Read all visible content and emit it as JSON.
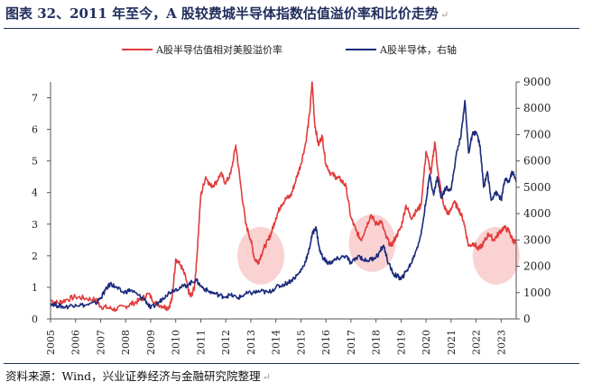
{
  "figure": {
    "title": "图表 32、2011 年至今，A 股较费城半导体指数估值溢价率和比价走势",
    "source": "资料来源：Wind，兴业证券经济与金融研究院整理",
    "paragraph_mark": "↵"
  },
  "chart_data": {
    "type": "line",
    "title": "",
    "xlabel": "",
    "ylabel_left": "",
    "ylabel_right": "",
    "x_ticks": [
      "2005",
      "2006",
      "2007",
      "2008",
      "2009",
      "2010",
      "2011",
      "2012",
      "2013",
      "2014",
      "2015",
      "2016",
      "2017",
      "2018",
      "2019",
      "2020",
      "2021",
      "2022",
      "2023"
    ],
    "x_range": [
      2005.0,
      2023.6
    ],
    "y_left": {
      "ticks": [
        "0",
        "1",
        "2",
        "3",
        "4",
        "5",
        "6",
        "7"
      ],
      "range": [
        0,
        7.5
      ]
    },
    "y_right": {
      "ticks": [
        "0",
        "1000",
        "2000",
        "3000",
        "4000",
        "5000",
        "6000",
        "7000",
        "8000",
        "9000"
      ],
      "range": [
        0,
        9000
      ]
    },
    "grid": false,
    "legend_position": "top",
    "series": [
      {
        "name": "A股半导估值相对美股溢价率",
        "axis": "left",
        "color": "#e23b3b",
        "x": [
          2005.0,
          2005.3,
          2005.6,
          2006.0,
          2006.4,
          2006.8,
          2007.0,
          2007.3,
          2007.6,
          2008.0,
          2008.3,
          2008.6,
          2008.9,
          2009.2,
          2009.5,
          2009.7,
          2009.85,
          2010.0,
          2010.2,
          2010.4,
          2010.5,
          2010.6,
          2010.75,
          2010.85,
          2011.0,
          2011.2,
          2011.4,
          2011.6,
          2011.8,
          2012.0,
          2012.2,
          2012.4,
          2012.6,
          2012.8,
          2013.0,
          2013.15,
          2013.3,
          2013.5,
          2013.7,
          2013.85,
          2014.0,
          2014.2,
          2014.4,
          2014.6,
          2014.8,
          2015.0,
          2015.2,
          2015.35,
          2015.45,
          2015.55,
          2015.7,
          2015.85,
          2016.0,
          2016.2,
          2016.4,
          2016.6,
          2016.8,
          2017.0,
          2017.2,
          2017.4,
          2017.6,
          2017.8,
          2018.0,
          2018.2,
          2018.4,
          2018.6,
          2018.8,
          2019.0,
          2019.2,
          2019.4,
          2019.6,
          2019.8,
          2020.0,
          2020.2,
          2020.35,
          2020.5,
          2020.7,
          2020.9,
          2021.1,
          2021.3,
          2021.5,
          2021.7,
          2021.9,
          2022.1,
          2022.3,
          2022.5,
          2022.7,
          2022.9,
          2023.1,
          2023.3,
          2023.45,
          2023.6
        ],
        "values": [
          0.6,
          0.5,
          0.6,
          0.7,
          0.65,
          0.6,
          0.4,
          0.35,
          0.3,
          0.4,
          0.5,
          0.6,
          0.8,
          0.5,
          0.4,
          0.35,
          0.6,
          1.9,
          1.7,
          1.3,
          0.9,
          0.7,
          1.0,
          2.0,
          3.9,
          4.5,
          4.2,
          4.3,
          4.6,
          4.3,
          4.6,
          5.5,
          4.2,
          3.0,
          2.5,
          1.9,
          1.8,
          2.2,
          2.5,
          2.8,
          3.2,
          3.6,
          3.8,
          3.9,
          4.4,
          4.9,
          5.6,
          6.5,
          7.5,
          6.2,
          5.5,
          5.8,
          4.9,
          4.6,
          4.5,
          4.4,
          4.2,
          3.2,
          2.8,
          2.5,
          2.9,
          3.3,
          3.0,
          3.1,
          2.6,
          2.3,
          2.6,
          2.9,
          3.6,
          3.2,
          3.4,
          3.6,
          5.3,
          4.6,
          5.6,
          4.5,
          3.6,
          3.3,
          3.7,
          3.5,
          3.1,
          2.3,
          2.4,
          2.2,
          2.4,
          2.7,
          2.5,
          2.7,
          2.9,
          2.8,
          2.5,
          2.4
        ]
      },
      {
        "name": "A股半导体，右轴",
        "axis": "right",
        "color": "#1b2a7a",
        "x": [
          2005.0,
          2005.3,
          2005.6,
          2006.0,
          2006.4,
          2006.8,
          2007.0,
          2007.2,
          2007.4,
          2007.6,
          2007.9,
          2008.2,
          2008.5,
          2008.8,
          2009.0,
          2009.3,
          2009.6,
          2009.9,
          2010.2,
          2010.5,
          2010.8,
          2011.0,
          2011.3,
          2011.6,
          2011.9,
          2012.2,
          2012.5,
          2012.8,
          2013.1,
          2013.4,
          2013.7,
          2014.0,
          2014.3,
          2014.6,
          2014.9,
          2015.1,
          2015.3,
          2015.45,
          2015.6,
          2015.75,
          2015.9,
          2016.1,
          2016.3,
          2016.5,
          2016.8,
          2017.0,
          2017.3,
          2017.6,
          2017.9,
          2018.1,
          2018.3,
          2018.5,
          2018.7,
          2018.9,
          2019.0,
          2019.2,
          2019.4,
          2019.6,
          2019.8,
          2020.0,
          2020.15,
          2020.3,
          2020.45,
          2020.6,
          2020.8,
          2021.0,
          2021.2,
          2021.4,
          2021.55,
          2021.7,
          2021.85,
          2022.0,
          2022.15,
          2022.3,
          2022.45,
          2022.6,
          2022.75,
          2022.9,
          2023.0,
          2023.15,
          2023.3,
          2023.45,
          2023.6
        ],
        "values": [
          600,
          500,
          450,
          550,
          520,
          600,
          800,
          1100,
          1350,
          1200,
          1000,
          1100,
          900,
          700,
          400,
          600,
          900,
          1100,
          1200,
          1300,
          1500,
          1250,
          1050,
          950,
          850,
          900,
          800,
          950,
          1000,
          1050,
          1000,
          1200,
          1300,
          1450,
          1700,
          2000,
          2500,
          3200,
          3500,
          2600,
          2300,
          2100,
          2200,
          2300,
          2400,
          2100,
          2400,
          2200,
          2300,
          2450,
          2800,
          2100,
          1700,
          1600,
          1500,
          1800,
          2100,
          2600,
          3200,
          4500,
          5500,
          4700,
          5400,
          4600,
          5000,
          4900,
          6200,
          7000,
          8300,
          6300,
          7000,
          7100,
          6600,
          5000,
          5600,
          4500,
          4800,
          4700,
          4500,
          5300,
          5200,
          5600,
          5200
        ]
      }
    ],
    "highlight_markers": [
      {
        "x": 2013.4,
        "y_left": 2.0
      },
      {
        "x": 2017.85,
        "y_left": 2.4
      },
      {
        "x": 2022.8,
        "y_left": 2.0
      }
    ]
  }
}
